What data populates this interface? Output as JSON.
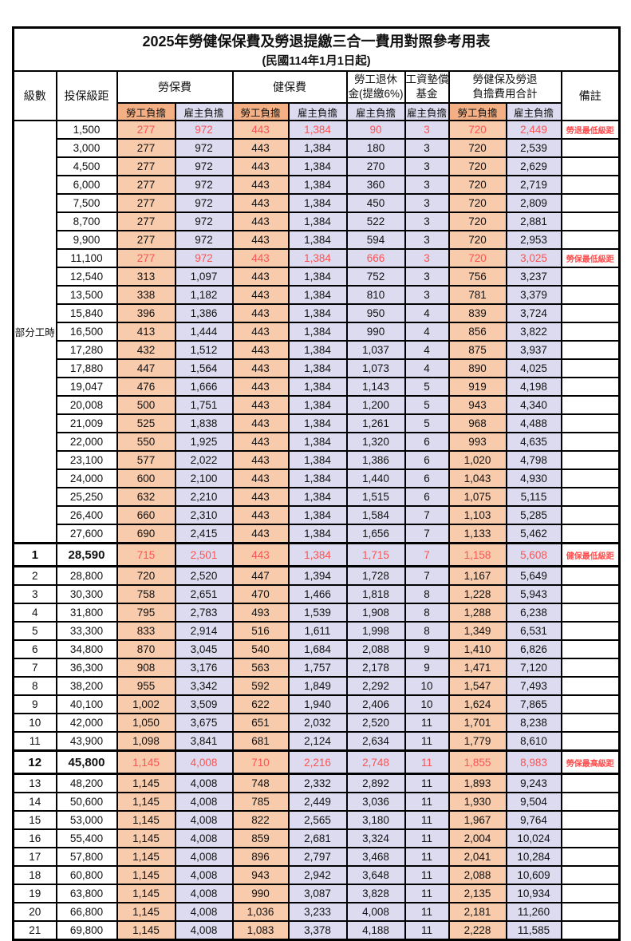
{
  "page": {
    "title": "2025年勞健保保費及勞退提繳三合一費用對照參考用表",
    "subtitle": "(民國114年1月1日起)"
  },
  "header": {
    "level": "級數",
    "bracket": "投保級距",
    "labor_insurance": "勞保費",
    "health_insurance": "健保費",
    "pension_line1": "勞工退休",
    "pension_line2": "金(提繳6%)",
    "wage_fund_line1": "工資墊償",
    "wage_fund_line2": "基金",
    "total_line1": "勞健保及勞退",
    "total_line2": "負擔費用合計",
    "remarks": "備註",
    "employee_share": "勞工負擔",
    "employer_share": "雇主負擔"
  },
  "part_time": {
    "label": "部分工時",
    "rowspan": 23
  },
  "colors": {
    "employee_data_bg": "#F8CBAD",
    "employee_header_bg": "#F4B084",
    "employer_bg": "#DCDBF0",
    "red_value_text": "#FB5454",
    "remark_text": "#FF4D4D",
    "border": "#000000"
  },
  "rows": [
    {
      "level": "",
      "bracket": "1,500",
      "labor_emp": "277",
      "labor_er": "972",
      "health_emp": "443",
      "health_er": "1,384",
      "pension_er": "90",
      "wage_er": "3",
      "total_emp": "720",
      "total_er": "2,449",
      "remark": "勞退最低級距",
      "red": true,
      "highlight": false
    },
    {
      "level": "",
      "bracket": "3,000",
      "labor_emp": "277",
      "labor_er": "972",
      "health_emp": "443",
      "health_er": "1,384",
      "pension_er": "180",
      "wage_er": "3",
      "total_emp": "720",
      "total_er": "2,539",
      "remark": "",
      "red": false,
      "highlight": false
    },
    {
      "level": "",
      "bracket": "4,500",
      "labor_emp": "277",
      "labor_er": "972",
      "health_emp": "443",
      "health_er": "1,384",
      "pension_er": "270",
      "wage_er": "3",
      "total_emp": "720",
      "total_er": "2,629",
      "remark": "",
      "red": false,
      "highlight": false
    },
    {
      "level": "",
      "bracket": "6,000",
      "labor_emp": "277",
      "labor_er": "972",
      "health_emp": "443",
      "health_er": "1,384",
      "pension_er": "360",
      "wage_er": "3",
      "total_emp": "720",
      "total_er": "2,719",
      "remark": "",
      "red": false,
      "highlight": false
    },
    {
      "level": "",
      "bracket": "7,500",
      "labor_emp": "277",
      "labor_er": "972",
      "health_emp": "443",
      "health_er": "1,384",
      "pension_er": "450",
      "wage_er": "3",
      "total_emp": "720",
      "total_er": "2,809",
      "remark": "",
      "red": false,
      "highlight": false
    },
    {
      "level": "",
      "bracket": "8,700",
      "labor_emp": "277",
      "labor_er": "972",
      "health_emp": "443",
      "health_er": "1,384",
      "pension_er": "522",
      "wage_er": "3",
      "total_emp": "720",
      "total_er": "2,881",
      "remark": "",
      "red": false,
      "highlight": false
    },
    {
      "level": "",
      "bracket": "9,900",
      "labor_emp": "277",
      "labor_er": "972",
      "health_emp": "443",
      "health_er": "1,384",
      "pension_er": "594",
      "wage_er": "3",
      "total_emp": "720",
      "total_er": "2,953",
      "remark": "",
      "red": false,
      "highlight": false
    },
    {
      "level": "",
      "bracket": "11,100",
      "labor_emp": "277",
      "labor_er": "972",
      "health_emp": "443",
      "health_er": "1,384",
      "pension_er": "666",
      "wage_er": "3",
      "total_emp": "720",
      "total_er": "3,025",
      "remark": "勞保最低級距",
      "red": true,
      "highlight": false
    },
    {
      "level": "",
      "bracket": "12,540",
      "labor_emp": "313",
      "labor_er": "1,097",
      "health_emp": "443",
      "health_er": "1,384",
      "pension_er": "752",
      "wage_er": "3",
      "total_emp": "756",
      "total_er": "3,237",
      "remark": "",
      "red": false,
      "highlight": false
    },
    {
      "level": "",
      "bracket": "13,500",
      "labor_emp": "338",
      "labor_er": "1,182",
      "health_emp": "443",
      "health_er": "1,384",
      "pension_er": "810",
      "wage_er": "3",
      "total_emp": "781",
      "total_er": "3,379",
      "remark": "",
      "red": false,
      "highlight": false
    },
    {
      "level": "",
      "bracket": "15,840",
      "labor_emp": "396",
      "labor_er": "1,386",
      "health_emp": "443",
      "health_er": "1,384",
      "pension_er": "950",
      "wage_er": "4",
      "total_emp": "839",
      "total_er": "3,724",
      "remark": "",
      "red": false,
      "highlight": false
    },
    {
      "level": "",
      "bracket": "16,500",
      "labor_emp": "413",
      "labor_er": "1,444",
      "health_emp": "443",
      "health_er": "1,384",
      "pension_er": "990",
      "wage_er": "4",
      "total_emp": "856",
      "total_er": "3,822",
      "remark": "",
      "red": false,
      "highlight": false
    },
    {
      "level": "",
      "bracket": "17,280",
      "labor_emp": "432",
      "labor_er": "1,512",
      "health_emp": "443",
      "health_er": "1,384",
      "pension_er": "1,037",
      "wage_er": "4",
      "total_emp": "875",
      "total_er": "3,937",
      "remark": "",
      "red": false,
      "highlight": false
    },
    {
      "level": "",
      "bracket": "17,880",
      "labor_emp": "447",
      "labor_er": "1,564",
      "health_emp": "443",
      "health_er": "1,384",
      "pension_er": "1,073",
      "wage_er": "4",
      "total_emp": "890",
      "total_er": "4,025",
      "remark": "",
      "red": false,
      "highlight": false
    },
    {
      "level": "",
      "bracket": "19,047",
      "labor_emp": "476",
      "labor_er": "1,666",
      "health_emp": "443",
      "health_er": "1,384",
      "pension_er": "1,143",
      "wage_er": "5",
      "total_emp": "919",
      "total_er": "4,198",
      "remark": "",
      "red": false,
      "highlight": false
    },
    {
      "level": "",
      "bracket": "20,008",
      "labor_emp": "500",
      "labor_er": "1,751",
      "health_emp": "443",
      "health_er": "1,384",
      "pension_er": "1,200",
      "wage_er": "5",
      "total_emp": "943",
      "total_er": "4,340",
      "remark": "",
      "red": false,
      "highlight": false
    },
    {
      "level": "",
      "bracket": "21,009",
      "labor_emp": "525",
      "labor_er": "1,838",
      "health_emp": "443",
      "health_er": "1,384",
      "pension_er": "1,261",
      "wage_er": "5",
      "total_emp": "968",
      "total_er": "4,488",
      "remark": "",
      "red": false,
      "highlight": false
    },
    {
      "level": "",
      "bracket": "22,000",
      "labor_emp": "550",
      "labor_er": "1,925",
      "health_emp": "443",
      "health_er": "1,384",
      "pension_er": "1,320",
      "wage_er": "6",
      "total_emp": "993",
      "total_er": "4,635",
      "remark": "",
      "red": false,
      "highlight": false
    },
    {
      "level": "",
      "bracket": "23,100",
      "labor_emp": "577",
      "labor_er": "2,022",
      "health_emp": "443",
      "health_er": "1,384",
      "pension_er": "1,386",
      "wage_er": "6",
      "total_emp": "1,020",
      "total_er": "4,798",
      "remark": "",
      "red": false,
      "highlight": false
    },
    {
      "level": "",
      "bracket": "24,000",
      "labor_emp": "600",
      "labor_er": "2,100",
      "health_emp": "443",
      "health_er": "1,384",
      "pension_er": "1,440",
      "wage_er": "6",
      "total_emp": "1,043",
      "total_er": "4,930",
      "remark": "",
      "red": false,
      "highlight": false
    },
    {
      "level": "",
      "bracket": "25,250",
      "labor_emp": "632",
      "labor_er": "2,210",
      "health_emp": "443",
      "health_er": "1,384",
      "pension_er": "1,515",
      "wage_er": "6",
      "total_emp": "1,075",
      "total_er": "5,115",
      "remark": "",
      "red": false,
      "highlight": false
    },
    {
      "level": "",
      "bracket": "26,400",
      "labor_emp": "660",
      "labor_er": "2,310",
      "health_emp": "443",
      "health_er": "1,384",
      "pension_er": "1,584",
      "wage_er": "7",
      "total_emp": "1,103",
      "total_er": "5,285",
      "remark": "",
      "red": false,
      "highlight": false
    },
    {
      "level": "",
      "bracket": "27,600",
      "labor_emp": "690",
      "labor_er": "2,415",
      "health_emp": "443",
      "health_er": "1,384",
      "pension_er": "1,656",
      "wage_er": "7",
      "total_emp": "1,133",
      "total_er": "5,462",
      "remark": "",
      "red": false,
      "highlight": false
    },
    {
      "level": "1",
      "bracket": "28,590",
      "labor_emp": "715",
      "labor_er": "2,501",
      "health_emp": "443",
      "health_er": "1,384",
      "pension_er": "1,715",
      "wage_er": "7",
      "total_emp": "1,158",
      "total_er": "5,608",
      "remark": "健保最低級距",
      "red": true,
      "highlight": true
    },
    {
      "level": "2",
      "bracket": "28,800",
      "labor_emp": "720",
      "labor_er": "2,520",
      "health_emp": "447",
      "health_er": "1,394",
      "pension_er": "1,728",
      "wage_er": "7",
      "total_emp": "1,167",
      "total_er": "5,649",
      "remark": "",
      "red": false,
      "highlight": false
    },
    {
      "level": "3",
      "bracket": "30,300",
      "labor_emp": "758",
      "labor_er": "2,651",
      "health_emp": "470",
      "health_er": "1,466",
      "pension_er": "1,818",
      "wage_er": "8",
      "total_emp": "1,228",
      "total_er": "5,943",
      "remark": "",
      "red": false,
      "highlight": false
    },
    {
      "level": "4",
      "bracket": "31,800",
      "labor_emp": "795",
      "labor_er": "2,783",
      "health_emp": "493",
      "health_er": "1,539",
      "pension_er": "1,908",
      "wage_er": "8",
      "total_emp": "1,288",
      "total_er": "6,238",
      "remark": "",
      "red": false,
      "highlight": false
    },
    {
      "level": "5",
      "bracket": "33,300",
      "labor_emp": "833",
      "labor_er": "2,914",
      "health_emp": "516",
      "health_er": "1,611",
      "pension_er": "1,998",
      "wage_er": "8",
      "total_emp": "1,349",
      "total_er": "6,531",
      "remark": "",
      "red": false,
      "highlight": false
    },
    {
      "level": "6",
      "bracket": "34,800",
      "labor_emp": "870",
      "labor_er": "3,045",
      "health_emp": "540",
      "health_er": "1,684",
      "pension_er": "2,088",
      "wage_er": "9",
      "total_emp": "1,410",
      "total_er": "6,826",
      "remark": "",
      "red": false,
      "highlight": false
    },
    {
      "level": "7",
      "bracket": "36,300",
      "labor_emp": "908",
      "labor_er": "3,176",
      "health_emp": "563",
      "health_er": "1,757",
      "pension_er": "2,178",
      "wage_er": "9",
      "total_emp": "1,471",
      "total_er": "7,120",
      "remark": "",
      "red": false,
      "highlight": false
    },
    {
      "level": "8",
      "bracket": "38,200",
      "labor_emp": "955",
      "labor_er": "3,342",
      "health_emp": "592",
      "health_er": "1,849",
      "pension_er": "2,292",
      "wage_er": "10",
      "total_emp": "1,547",
      "total_er": "7,493",
      "remark": "",
      "red": false,
      "highlight": false
    },
    {
      "level": "9",
      "bracket": "40,100",
      "labor_emp": "1,002",
      "labor_er": "3,509",
      "health_emp": "622",
      "health_er": "1,940",
      "pension_er": "2,406",
      "wage_er": "10",
      "total_emp": "1,624",
      "total_er": "7,865",
      "remark": "",
      "red": false,
      "highlight": false
    },
    {
      "level": "10",
      "bracket": "42,000",
      "labor_emp": "1,050",
      "labor_er": "3,675",
      "health_emp": "651",
      "health_er": "2,032",
      "pension_er": "2,520",
      "wage_er": "11",
      "total_emp": "1,701",
      "total_er": "8,238",
      "remark": "",
      "red": false,
      "highlight": false
    },
    {
      "level": "11",
      "bracket": "43,900",
      "labor_emp": "1,098",
      "labor_er": "3,841",
      "health_emp": "681",
      "health_er": "2,124",
      "pension_er": "2,634",
      "wage_er": "11",
      "total_emp": "1,779",
      "total_er": "8,610",
      "remark": "",
      "red": false,
      "highlight": false
    },
    {
      "level": "12",
      "bracket": "45,800",
      "labor_emp": "1,145",
      "labor_er": "4,008",
      "health_emp": "710",
      "health_er": "2,216",
      "pension_er": "2,748",
      "wage_er": "11",
      "total_emp": "1,855",
      "total_er": "8,983",
      "remark": "勞保最高級距",
      "red": true,
      "highlight": true
    },
    {
      "level": "13",
      "bracket": "48,200",
      "labor_emp": "1,145",
      "labor_er": "4,008",
      "health_emp": "748",
      "health_er": "2,332",
      "pension_er": "2,892",
      "wage_er": "11",
      "total_emp": "1,893",
      "total_er": "9,243",
      "remark": "",
      "red": false,
      "highlight": false
    },
    {
      "level": "14",
      "bracket": "50,600",
      "labor_emp": "1,145",
      "labor_er": "4,008",
      "health_emp": "785",
      "health_er": "2,449",
      "pension_er": "3,036",
      "wage_er": "11",
      "total_emp": "1,930",
      "total_er": "9,504",
      "remark": "",
      "red": false,
      "highlight": false
    },
    {
      "level": "15",
      "bracket": "53,000",
      "labor_emp": "1,145",
      "labor_er": "4,008",
      "health_emp": "822",
      "health_er": "2,565",
      "pension_er": "3,180",
      "wage_er": "11",
      "total_emp": "1,967",
      "total_er": "9,764",
      "remark": "",
      "red": false,
      "highlight": false
    },
    {
      "level": "16",
      "bracket": "55,400",
      "labor_emp": "1,145",
      "labor_er": "4,008",
      "health_emp": "859",
      "health_er": "2,681",
      "pension_er": "3,324",
      "wage_er": "11",
      "total_emp": "2,004",
      "total_er": "10,024",
      "remark": "",
      "red": false,
      "highlight": false
    },
    {
      "level": "17",
      "bracket": "57,800",
      "labor_emp": "1,145",
      "labor_er": "4,008",
      "health_emp": "896",
      "health_er": "2,797",
      "pension_er": "3,468",
      "wage_er": "11",
      "total_emp": "2,041",
      "total_er": "10,284",
      "remark": "",
      "red": false,
      "highlight": false
    },
    {
      "level": "18",
      "bracket": "60,800",
      "labor_emp": "1,145",
      "labor_er": "4,008",
      "health_emp": "943",
      "health_er": "2,942",
      "pension_er": "3,648",
      "wage_er": "11",
      "total_emp": "2,088",
      "total_er": "10,609",
      "remark": "",
      "red": false,
      "highlight": false
    },
    {
      "level": "19",
      "bracket": "63,800",
      "labor_emp": "1,145",
      "labor_er": "4,008",
      "health_emp": "990",
      "health_er": "3,087",
      "pension_er": "3,828",
      "wage_er": "11",
      "total_emp": "2,135",
      "total_er": "10,934",
      "remark": "",
      "red": false,
      "highlight": false
    },
    {
      "level": "20",
      "bracket": "66,800",
      "labor_emp": "1,145",
      "labor_er": "4,008",
      "health_emp": "1,036",
      "health_er": "3,233",
      "pension_er": "4,008",
      "wage_er": "11",
      "total_emp": "2,181",
      "total_er": "11,260",
      "remark": "",
      "red": false,
      "highlight": false
    },
    {
      "level": "21",
      "bracket": "69,800",
      "labor_emp": "1,145",
      "labor_er": "4,008",
      "health_emp": "1,083",
      "health_er": "3,378",
      "pension_er": "4,188",
      "wage_er": "11",
      "total_emp": "2,228",
      "total_er": "11,585",
      "remark": "",
      "red": false,
      "highlight": false
    }
  ]
}
